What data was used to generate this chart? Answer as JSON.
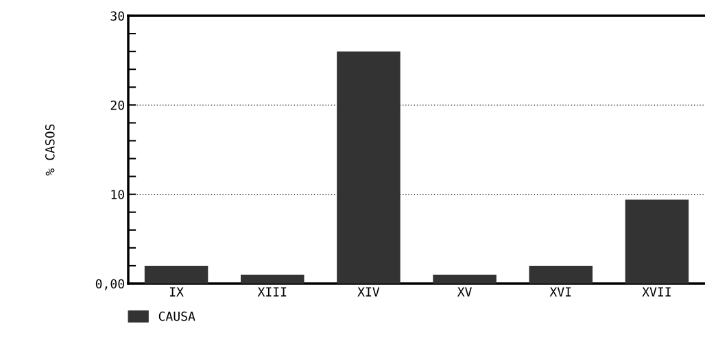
{
  "chart_data": {
    "type": "bar",
    "ylabel": "% CASOS",
    "categories": [
      "IX",
      "XIII",
      "XIV",
      "XV",
      "XVI",
      "XVII"
    ],
    "series": [
      {
        "name": "CAUSA",
        "color": "#333333",
        "values": [
          2,
          1,
          26,
          1,
          2,
          9.4
        ]
      }
    ],
    "ylim": [
      0,
      30
    ],
    "yticks": [
      {
        "value": 0,
        "label": "0,00"
      },
      {
        "value": 2,
        "label": null
      },
      {
        "value": 4,
        "label": null
      },
      {
        "value": 6,
        "label": null
      },
      {
        "value": 8,
        "label": null
      },
      10,
      {
        "value": 12,
        "label": null
      },
      {
        "value": 14,
        "label": null
      },
      {
        "value": 16,
        "label": null
      },
      {
        "value": 18,
        "label": null
      },
      20,
      {
        "value": 22,
        "label": null
      },
      {
        "value": 24,
        "label": null
      },
      {
        "value": 26,
        "label": null
      },
      {
        "value": 28,
        "label": null
      },
      30
    ],
    "grid": "y",
    "legend": "bottom left"
  }
}
